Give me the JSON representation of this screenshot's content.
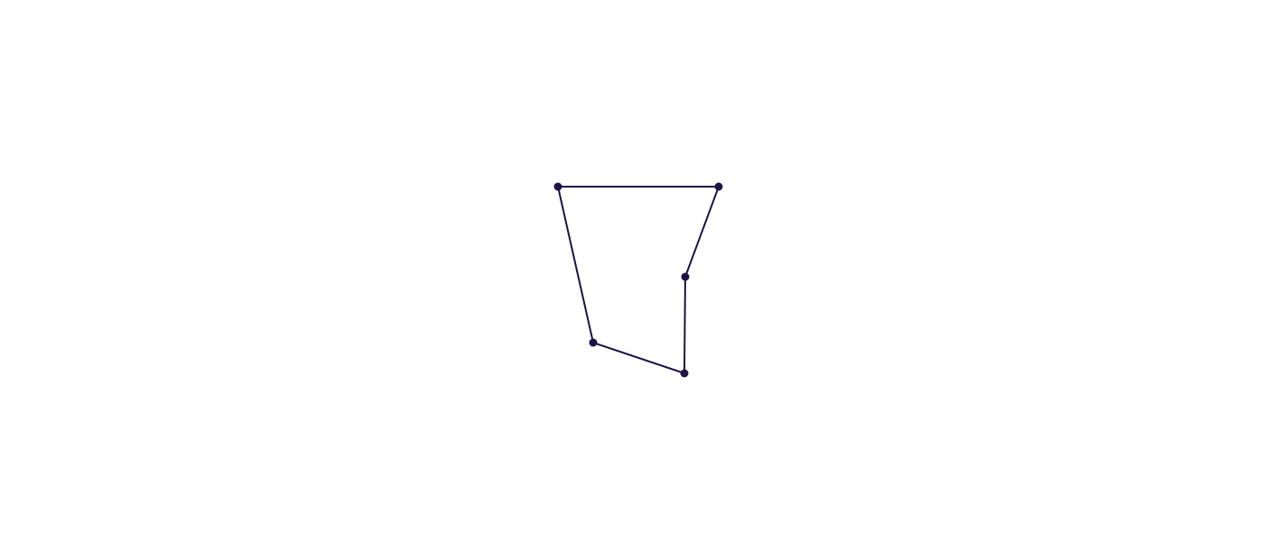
{
  "diagram": {
    "type": "polygon",
    "stroke_color": "#1e1245",
    "vertex_color": "#1e1245",
    "background_color": "#ffffff",
    "vertex_count": 5,
    "edge_count": 5,
    "closed": true
  }
}
